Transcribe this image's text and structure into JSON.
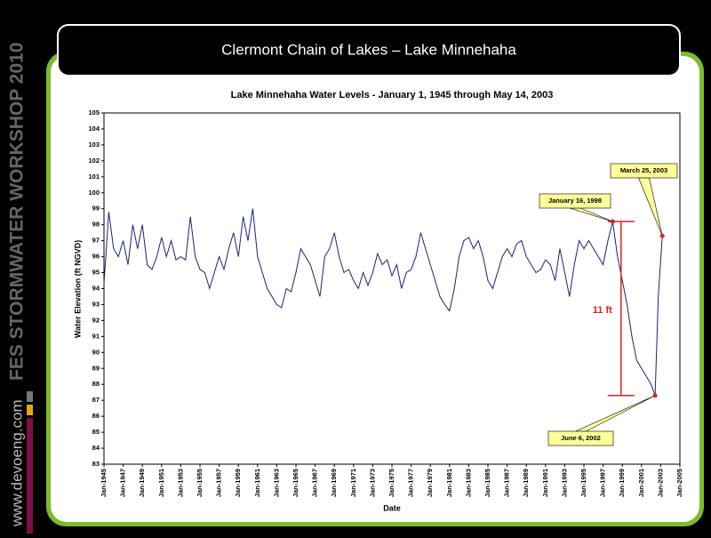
{
  "slide": {
    "title": "Clermont Chain of Lakes – Lake Minnehaha",
    "sidebar": "FES STORMWATER WORKSHOP 2010",
    "website": "www.devoeng.com"
  },
  "chart_data": {
    "type": "line",
    "title": "Lake Minnehaha Water Levels - January 1, 1945 through May 14, 2003",
    "y_label": "Water Elevation (ft NGVD)",
    "x_label": "Date",
    "color": "#1a237e",
    "ylim": [
      83,
      105
    ],
    "yticks": [
      83,
      84,
      85,
      86,
      87,
      88,
      89,
      90,
      91,
      92,
      93,
      94,
      95,
      96,
      97,
      98,
      99,
      100,
      101,
      102,
      103,
      104,
      105
    ],
    "xlim": [
      "1945-01",
      "2005-01"
    ],
    "xticks": [
      {
        "value": "1945-01",
        "label": "Jan-1945"
      },
      {
        "value": "1947-01",
        "label": "Jan-1947"
      },
      {
        "value": "1949-01",
        "label": "Jan-1949"
      },
      {
        "value": "1951-01",
        "label": "Jan-1951"
      },
      {
        "value": "1953-01",
        "label": "Jan-1953"
      },
      {
        "value": "1955-01",
        "label": "Jan-1955"
      },
      {
        "value": "1957-01",
        "label": "Jan-1957"
      },
      {
        "value": "1959-01",
        "label": "Jan-1959"
      },
      {
        "value": "1961-01",
        "label": "Jan-1961"
      },
      {
        "value": "1963-01",
        "label": "Jan-1963"
      },
      {
        "value": "1965-01",
        "label": "Jan-1965"
      },
      {
        "value": "1967-01",
        "label": "Jan-1967"
      },
      {
        "value": "1969-01",
        "label": "Jan-1969"
      },
      {
        "value": "1971-01",
        "label": "Jan-1971"
      },
      {
        "value": "1973-01",
        "label": "Jan-1973"
      },
      {
        "value": "1975-01",
        "label": "Jan-1975"
      },
      {
        "value": "1977-01",
        "label": "Jan-1977"
      },
      {
        "value": "1979-01",
        "label": "Jan-1979"
      },
      {
        "value": "1981-01",
        "label": "Jan-1981"
      },
      {
        "value": "1983-01",
        "label": "Jan-1983"
      },
      {
        "value": "1985-01",
        "label": "Jan-1985"
      },
      {
        "value": "1987-01",
        "label": "Jan-1987"
      },
      {
        "value": "1989-01",
        "label": "Jan-1989"
      },
      {
        "value": "1991-01",
        "label": "Jan-1991"
      },
      {
        "value": "1993-01",
        "label": "Jan-1993"
      },
      {
        "value": "1995-01",
        "label": "Jan-1995"
      },
      {
        "value": "1997-01",
        "label": "Jan-1997"
      },
      {
        "value": "1999-01",
        "label": "Jan-1999"
      },
      {
        "value": "2001-01",
        "label": "Jan-2001"
      },
      {
        "value": "2003-01",
        "label": "Jan-2003"
      },
      {
        "value": "2005-01",
        "label": "Jan-2005"
      }
    ],
    "x": [
      "1945-01",
      "1945-07",
      "1946-01",
      "1946-07",
      "1947-01",
      "1947-07",
      "1948-01",
      "1948-07",
      "1949-01",
      "1949-07",
      "1950-01",
      "1950-07",
      "1951-01",
      "1951-07",
      "1952-01",
      "1952-07",
      "1953-01",
      "1953-07",
      "1954-01",
      "1954-07",
      "1955-01",
      "1955-07",
      "1956-01",
      "1956-07",
      "1957-01",
      "1957-07",
      "1958-01",
      "1958-07",
      "1959-01",
      "1959-07",
      "1960-01",
      "1960-07",
      "1961-01",
      "1961-07",
      "1962-01",
      "1962-07",
      "1963-01",
      "1963-07",
      "1964-01",
      "1964-07",
      "1965-01",
      "1965-07",
      "1966-01",
      "1966-07",
      "1967-01",
      "1967-07",
      "1968-01",
      "1968-07",
      "1969-01",
      "1969-07",
      "1970-01",
      "1970-07",
      "1971-01",
      "1971-07",
      "1972-01",
      "1972-07",
      "1973-01",
      "1973-07",
      "1974-01",
      "1974-07",
      "1975-01",
      "1975-07",
      "1976-01",
      "1976-07",
      "1977-01",
      "1977-07",
      "1978-01",
      "1978-07",
      "1979-01",
      "1979-07",
      "1980-01",
      "1980-07",
      "1981-01",
      "1981-07",
      "1982-01",
      "1982-07",
      "1983-01",
      "1983-07",
      "1984-01",
      "1984-07",
      "1985-01",
      "1985-07",
      "1986-01",
      "1986-07",
      "1987-01",
      "1987-07",
      "1988-01",
      "1988-07",
      "1989-01",
      "1989-07",
      "1990-01",
      "1990-07",
      "1991-01",
      "1991-07",
      "1992-01",
      "1992-07",
      "1993-01",
      "1993-07",
      "1994-01",
      "1994-07",
      "1995-01",
      "1995-07",
      "1996-01",
      "1996-07",
      "1997-01",
      "1997-07",
      "1998-01",
      "1998-07",
      "1999-01",
      "1999-07",
      "2000-01",
      "2000-07",
      "2001-01",
      "2001-07",
      "2002-01",
      "2002-06",
      "2002-10",
      "2003-03"
    ],
    "values": [
      94.3,
      98.8,
      96.5,
      96,
      97,
      95.5,
      98,
      96.5,
      98,
      95.5,
      95.2,
      96,
      97.2,
      96,
      97,
      95.8,
      96,
      95.8,
      98.5,
      96,
      95.2,
      95,
      94,
      95,
      96,
      95.2,
      96.5,
      97.5,
      96,
      98.5,
      97,
      99,
      96,
      95,
      94,
      93.5,
      93,
      92.8,
      94,
      93.8,
      95,
      96.5,
      96,
      95.5,
      94.5,
      93.5,
      96,
      96.5,
      97.5,
      96,
      95,
      95.2,
      94.5,
      94,
      95,
      94.2,
      95,
      96.2,
      95.5,
      95.8,
      94.8,
      95.5,
      94,
      95,
      95.2,
      96,
      97.5,
      96.5,
      95.5,
      94.5,
      93.5,
      93,
      92.6,
      94,
      96,
      97,
      97.2,
      96.5,
      97,
      96,
      94.5,
      94,
      95,
      96,
      96.5,
      96,
      96.8,
      97,
      96,
      95.5,
      95,
      95.2,
      95.8,
      95.5,
      94.5,
      96.5,
      95,
      93.5,
      95.5,
      97,
      96.5,
      97,
      96.5,
      96,
      95.5,
      97,
      98.2,
      96,
      94.5,
      93,
      91,
      89.5,
      89,
      88.5,
      88,
      87.3,
      93.5,
      97.3
    ],
    "annotations": [
      {
        "label": "January 16, 1998",
        "x": "1998-01",
        "y": 98.2
      },
      {
        "label": "March 25, 2003",
        "x": "2003-03",
        "y": 97.3
      },
      {
        "label": "June 6, 2002",
        "x": "2002-06",
        "y": 87.3
      }
    ],
    "range_annotation": {
      "label": "11 ft",
      "from": 87.3,
      "to": 98.2
    }
  }
}
